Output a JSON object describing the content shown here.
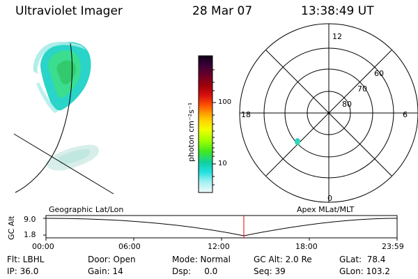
{
  "header": {
    "instrument": "Ultraviolet Imager",
    "date": "28 Mar 07",
    "time": "13:38:49 UT"
  },
  "colorbar": {
    "label": "photon cm⁻²s⁻¹",
    "ticks": [
      "100",
      "10"
    ],
    "colors": [
      "#1a0018",
      "#3a0030",
      "#5a0030",
      "#800018",
      "#a0000c",
      "#c00000",
      "#e01010",
      "#ff4000",
      "#ff8000",
      "#ffc000",
      "#ffff00",
      "#d0ff00",
      "#80ff00",
      "#30e020",
      "#00d090",
      "#00e0e0",
      "#80f0f0",
      "#d0f8f8",
      "#e8f8f8"
    ]
  },
  "polar": {
    "mlt_labels": [
      "12",
      "18",
      "6",
      "0"
    ],
    "lat_labels": [
      "60",
      "70",
      "80"
    ]
  },
  "timeline": {
    "y_axis_label": "GC Alt",
    "y_ticks": [
      "9.0",
      "1.8"
    ],
    "left_label": "Geographic Lat/Lon",
    "right_label": "Apex MLat/MLT",
    "x_ticks": [
      "00:00",
      "06:00",
      "12:00",
      "18:00",
      "23:59"
    ],
    "current_marker_color": "#e00000"
  },
  "status": {
    "row1": {
      "flt": "Flt: LBHL",
      "door": "Door: Open",
      "mode": "Mode: Normal",
      "gc_alt": "GC Alt: 2.0 Re",
      "glat": "GLat:  78.4"
    },
    "row2": {
      "ip": "IP: 36.0",
      "gain": "Gain: 14",
      "dsp": "Dsp:     0.0",
      "seq": "Seq: 39",
      "glon": "GLon: 103.2"
    }
  }
}
